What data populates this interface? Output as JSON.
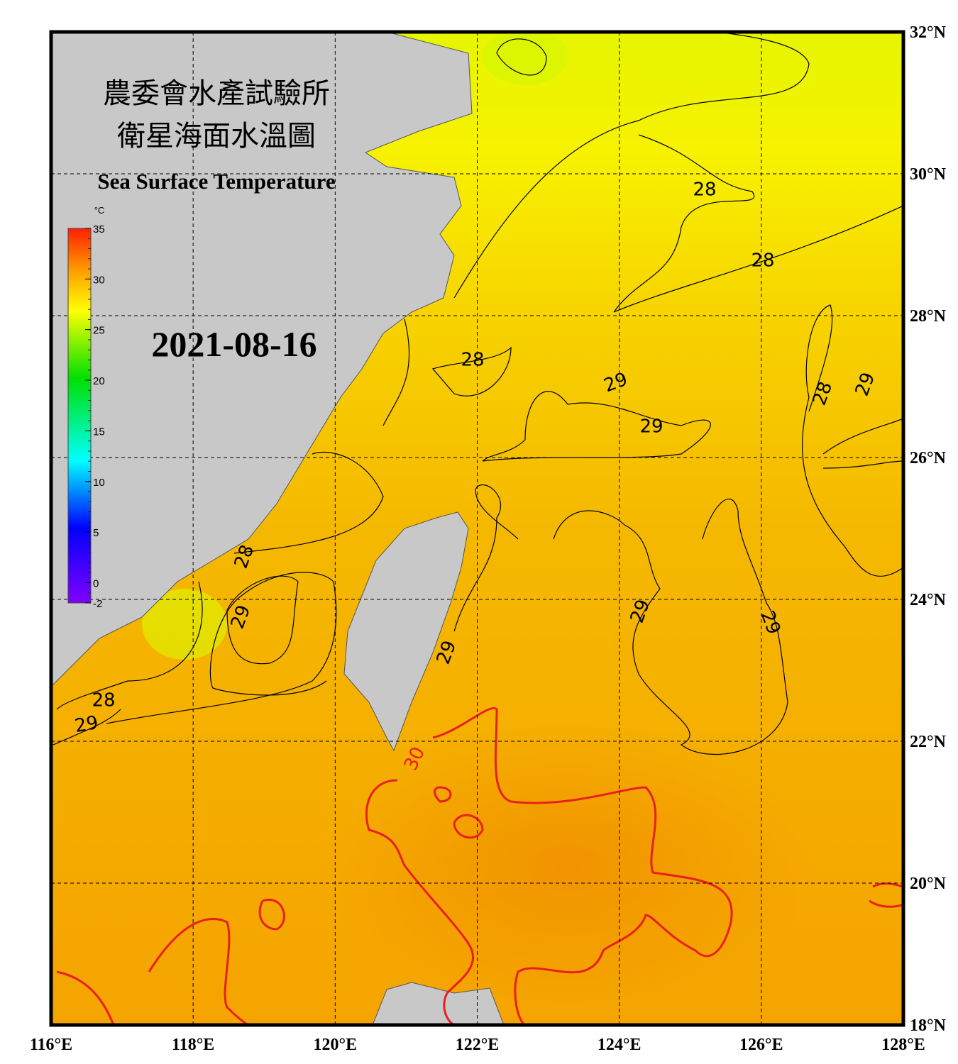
{
  "title_zh_1": "農委會水產試驗所",
  "title_zh_2": "衛星海面水溫圖",
  "title_en": "Sea Surface Temperature",
  "date": "2021-08-16",
  "map": {
    "xlim": [
      116,
      128
    ],
    "ylim": [
      18,
      32
    ],
    "xticks": [
      {
        "value": 116,
        "label": "116°E"
      },
      {
        "value": 118,
        "label": "118°E"
      },
      {
        "value": 120,
        "label": "120°E"
      },
      {
        "value": 122,
        "label": "122°E"
      },
      {
        "value": 124,
        "label": "124°E"
      },
      {
        "value": 126,
        "label": "126°E"
      },
      {
        "value": 128,
        "label": "128°E"
      }
    ],
    "yticks": [
      {
        "value": 18,
        "label": "18°N"
      },
      {
        "value": 20,
        "label": "20°N"
      },
      {
        "value": 22,
        "label": "22°N"
      },
      {
        "value": 24,
        "label": "24°N"
      },
      {
        "value": 26,
        "label": "26°N"
      },
      {
        "value": 28,
        "label": "28°N"
      },
      {
        "value": 30,
        "label": "30°N"
      },
      {
        "value": 32,
        "label": "32°N"
      }
    ]
  },
  "colorbar": {
    "unit": "°C",
    "lim": [
      -2,
      35
    ],
    "ticks": [
      35,
      30,
      25,
      20,
      15,
      10,
      5,
      0,
      -2
    ]
  },
  "contour_labels": [
    "28",
    "28",
    "28",
    "29",
    "29",
    "28",
    "29",
    "28",
    "29",
    "29",
    "29",
    "29",
    "28",
    "29",
    "30"
  ]
}
